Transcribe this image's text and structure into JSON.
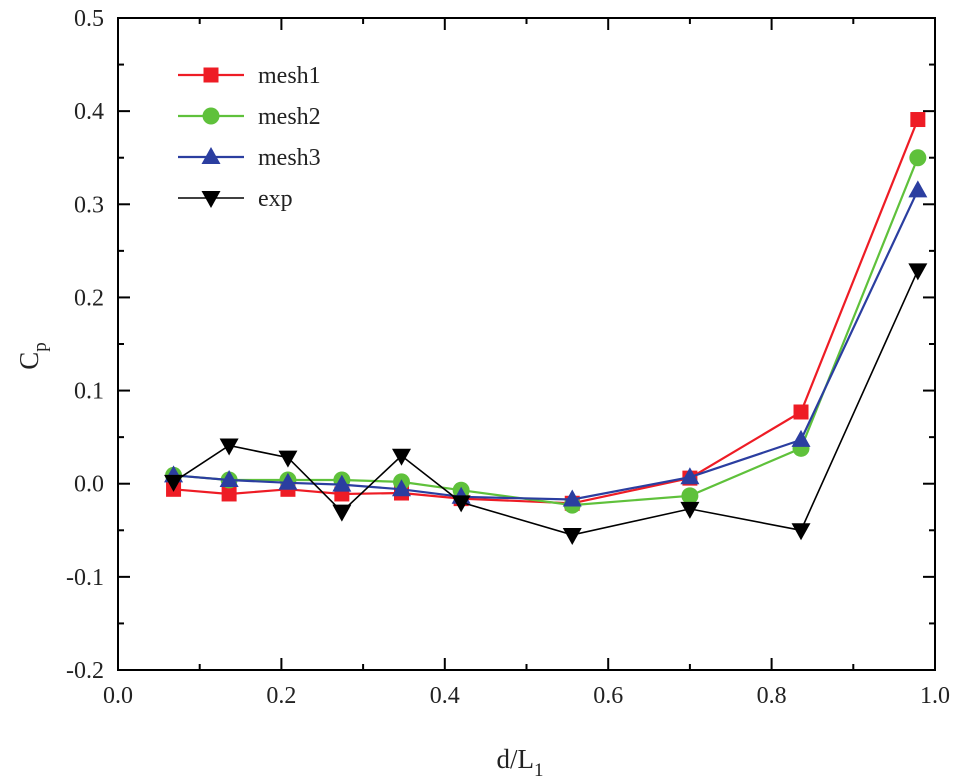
{
  "chart_data": {
    "type": "line",
    "title": "",
    "xlabel": "d/L",
    "xlabel_sub": "1",
    "ylabel": "C",
    "ylabel_sub": "p",
    "xlim": [
      0.0,
      1.0
    ],
    "ylim": [
      -0.2,
      0.5
    ],
    "xticks": [
      "0.0",
      "0.2",
      "0.4",
      "0.6",
      "0.8",
      "1.0"
    ],
    "yticks": [
      "-0.2",
      "-0.1",
      "0.0",
      "0.1",
      "0.2",
      "0.3",
      "0.4",
      "0.5"
    ],
    "legend_position": "top-left",
    "series": [
      {
        "name": "mesh1",
        "color": "#ee1c25",
        "marker": "square",
        "x": [
          0.068,
          0.136,
          0.208,
          0.274,
          0.347,
          0.42,
          0.556,
          0.7,
          0.836,
          0.979
        ],
        "values": [
          -0.006,
          -0.011,
          -0.006,
          -0.011,
          -0.01,
          -0.016,
          -0.021,
          0.006,
          0.077,
          0.391
        ]
      },
      {
        "name": "mesh2",
        "color": "#5fc13b",
        "marker": "circle",
        "x": [
          0.068,
          0.136,
          0.208,
          0.274,
          0.347,
          0.42,
          0.556,
          0.7,
          0.836,
          0.979
        ],
        "values": [
          0.009,
          0.004,
          0.004,
          0.004,
          0.002,
          -0.007,
          -0.023,
          -0.013,
          0.038,
          0.35
        ]
      },
      {
        "name": "mesh3",
        "color": "#2b3ea0",
        "marker": "triangle-up",
        "x": [
          0.068,
          0.136,
          0.208,
          0.274,
          0.347,
          0.42,
          0.556,
          0.7,
          0.836,
          0.979
        ],
        "values": [
          0.009,
          0.004,
          0.001,
          -0.001,
          -0.006,
          -0.014,
          -0.017,
          0.007,
          0.047,
          0.315
        ]
      },
      {
        "name": "exp",
        "color": "#000000",
        "marker": "triangle-down",
        "x": [
          0.068,
          0.136,
          0.208,
          0.274,
          0.347,
          0.42,
          0.556,
          0.7,
          0.836,
          0.979
        ],
        "values": [
          0.002,
          0.041,
          0.028,
          -0.03,
          0.03,
          -0.02,
          -0.055,
          -0.027,
          -0.05,
          0.229
        ]
      }
    ]
  }
}
